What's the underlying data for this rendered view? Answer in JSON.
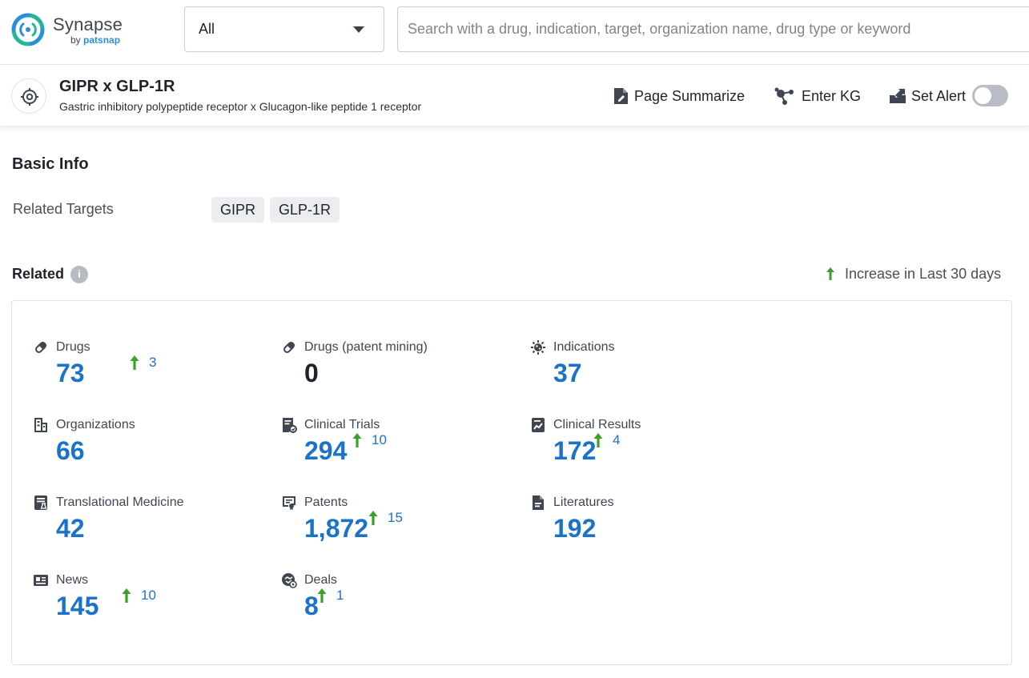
{
  "header": {
    "logo": {
      "name": "Synapse",
      "sub_by": "by",
      "sub_brand": "patsnap"
    },
    "scope_select": {
      "value": "All"
    },
    "search": {
      "placeholder": "Search with a drug, indication, target, organization name, drug type or keyword"
    }
  },
  "target": {
    "title": "GIPR x GLP-1R",
    "subtitle": "Gastric inhibitory polypeptide receptor x Glucagon-like peptide 1 receptor",
    "actions": {
      "summarize": "Page Summarize",
      "kg": "Enter KG",
      "alert": "Set Alert"
    },
    "alert_on": false
  },
  "basic_info": {
    "title": "Basic Info",
    "related_targets_label": "Related Targets",
    "related_targets": [
      "GIPR",
      "GLP-1R"
    ]
  },
  "related": {
    "title": "Related",
    "info_glyph": "i",
    "legend": "Increase in Last 30 days",
    "stats": [
      {
        "label": "Drugs",
        "icon": "pill-icon",
        "value": "73",
        "increase": "3"
      },
      {
        "label": "Drugs (patent mining)",
        "icon": "pill-icon",
        "value": "0",
        "increase": null
      },
      {
        "label": "Indications",
        "icon": "virus-icon",
        "value": "37",
        "increase": null
      },
      {
        "label": "Organizations",
        "icon": "building-icon",
        "value": "66",
        "increase": null
      },
      {
        "label": "Clinical Trials",
        "icon": "clipboard-icon",
        "value": "294",
        "increase": "10"
      },
      {
        "label": "Clinical Results",
        "icon": "chart-doc-icon",
        "value": "172",
        "increase": "4"
      },
      {
        "label": "Translational Medicine",
        "icon": "doc-flask-icon",
        "value": "42",
        "increase": null
      },
      {
        "label": "Patents",
        "icon": "certificate-icon",
        "value": "1,872",
        "increase": "15"
      },
      {
        "label": "Literatures",
        "icon": "document-icon",
        "value": "192",
        "increase": null
      },
      {
        "label": "News",
        "icon": "newspaper-icon",
        "value": "145",
        "increase": "10"
      },
      {
        "label": "Deals",
        "icon": "handshake-icon",
        "value": "8",
        "increase": "1"
      }
    ]
  },
  "colors": {
    "accent_blue": "#1a73c9",
    "increase_green": "#3aa02a",
    "logo_teal": "#22b59a",
    "logo_blue": "#2a8fd9"
  }
}
